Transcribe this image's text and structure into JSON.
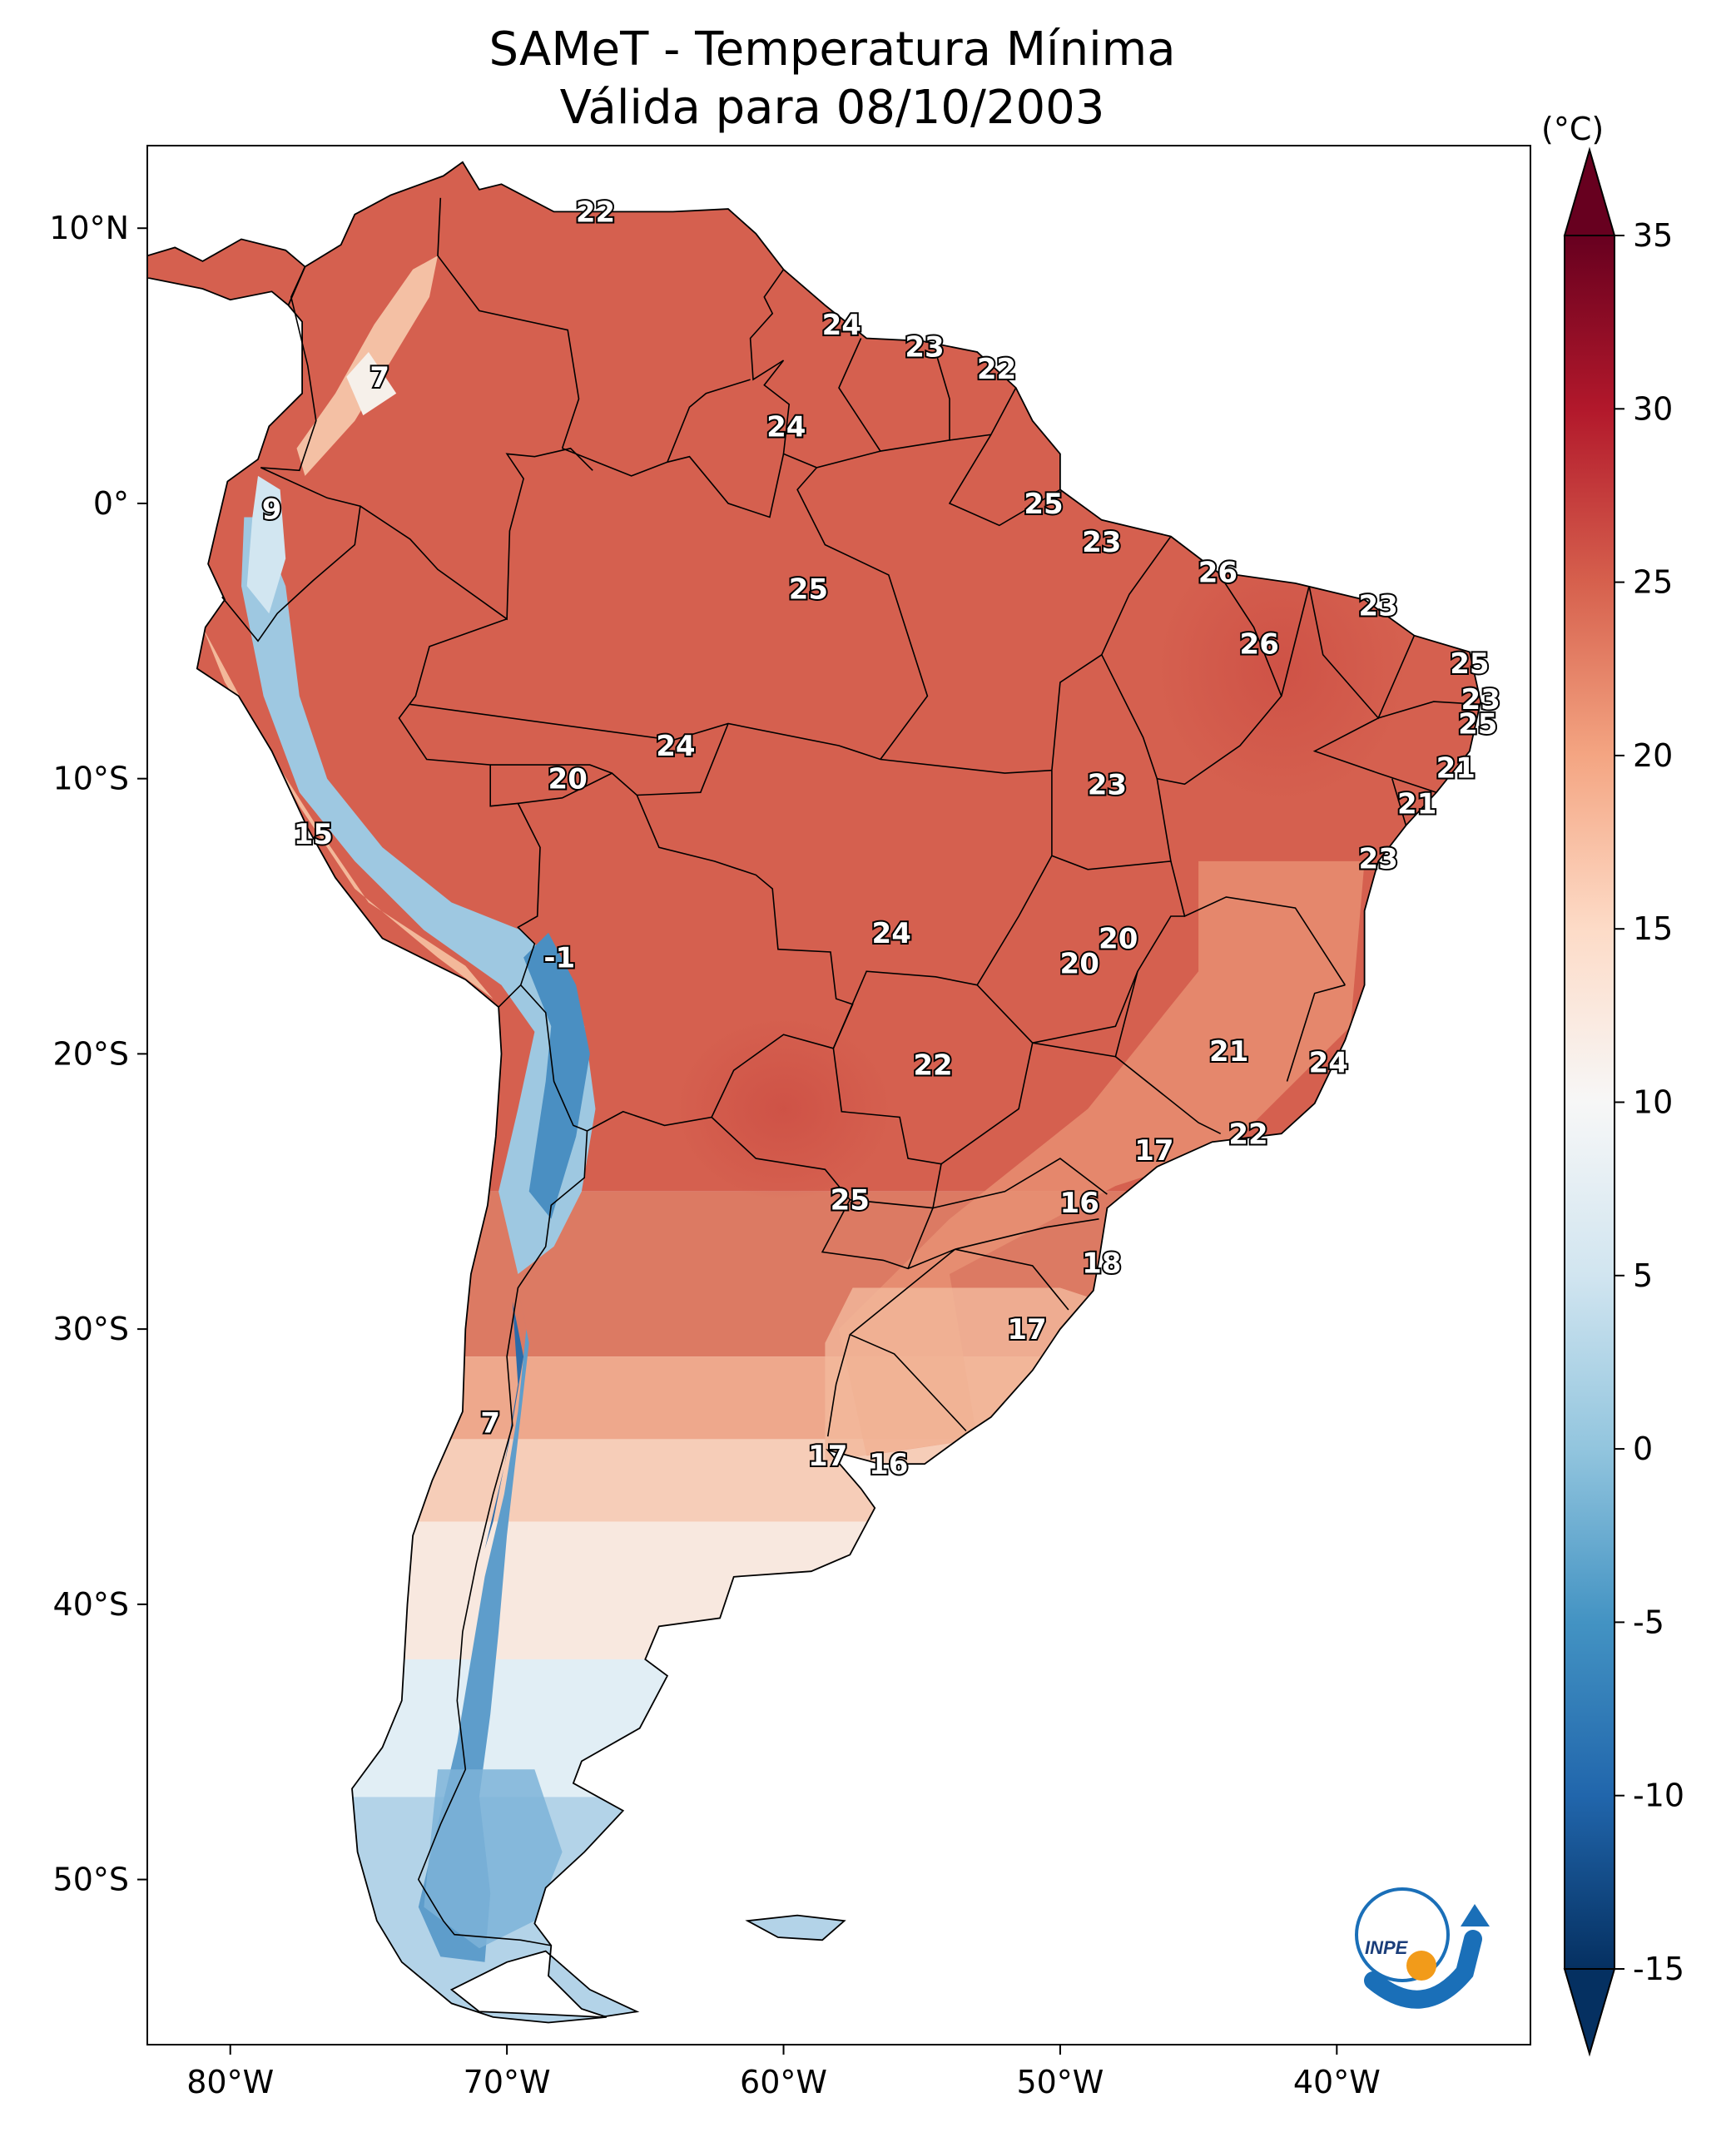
{
  "title_line1": "SAMeT - Temperatura Mínima",
  "title_line2": "Válida para 08/10/2003",
  "unit": "(°C)",
  "logo_text": "INPE",
  "lat_ticks": [
    {
      "lat": 10,
      "label": "10°N"
    },
    {
      "lat": 0,
      "label": "0°"
    },
    {
      "lat": -10,
      "label": "10°S"
    },
    {
      "lat": -20,
      "label": "20°S"
    },
    {
      "lat": -30,
      "label": "30°S"
    },
    {
      "lat": -40,
      "label": "40°S"
    },
    {
      "lat": -50,
      "label": "50°S"
    }
  ],
  "lon_ticks": [
    {
      "lon": -80,
      "label": "80°W"
    },
    {
      "lon": -70,
      "label": "70°W"
    },
    {
      "lon": -60,
      "label": "60°W"
    },
    {
      "lon": -50,
      "label": "50°W"
    },
    {
      "lon": -40,
      "label": "40°W"
    }
  ],
  "colorbar": {
    "min": -15,
    "max": 35,
    "ticks": [
      {
        "v": 35,
        "label": "35"
      },
      {
        "v": 30,
        "label": "30"
      },
      {
        "v": 25,
        "label": "25"
      },
      {
        "v": 20,
        "label": "20"
      },
      {
        "v": 15,
        "label": "15"
      },
      {
        "v": 10,
        "label": "10"
      },
      {
        "v": 5,
        "label": "5"
      },
      {
        "v": 0,
        "label": "0"
      },
      {
        "v": -5,
        "label": "-5"
      },
      {
        "v": -10,
        "label": "-10"
      },
      {
        "v": -15,
        "label": "-15"
      }
    ],
    "colors": [
      "#053061",
      "#2166ac",
      "#4393c3",
      "#92c5de",
      "#d1e5f0",
      "#f7f7f7",
      "#fddbc7",
      "#f4a582",
      "#d6604d",
      "#b2182b",
      "#67001f"
    ]
  },
  "station_labels": [
    {
      "lon": -66.8,
      "lat": 10.6,
      "text": "22"
    },
    {
      "lon": -57.9,
      "lat": 6.5,
      "text": "24"
    },
    {
      "lon": -54.9,
      "lat": 5.7,
      "text": "23"
    },
    {
      "lon": -52.3,
      "lat": 4.9,
      "text": "22"
    },
    {
      "lon": -74.6,
      "lat": 4.6,
      "text": "7"
    },
    {
      "lon": -59.9,
      "lat": 2.8,
      "text": "24"
    },
    {
      "lon": -78.5,
      "lat": -0.2,
      "text": "9"
    },
    {
      "lon": -50.6,
      "lat": 0.0,
      "text": "25"
    },
    {
      "lon": -48.5,
      "lat": -1.4,
      "text": "23"
    },
    {
      "lon": -44.3,
      "lat": -2.5,
      "text": "26"
    },
    {
      "lon": -59.1,
      "lat": -3.1,
      "text": "25"
    },
    {
      "lon": -38.5,
      "lat": -3.7,
      "text": "23"
    },
    {
      "lon": -42.8,
      "lat": -5.1,
      "text": "26"
    },
    {
      "lon": -35.2,
      "lat": -5.8,
      "text": "25"
    },
    {
      "lon": -34.8,
      "lat": -7.1,
      "text": "23"
    },
    {
      "lon": -34.9,
      "lat": -8.0,
      "text": "25"
    },
    {
      "lon": -63.9,
      "lat": -8.8,
      "text": "24"
    },
    {
      "lon": -35.7,
      "lat": -9.6,
      "text": "21"
    },
    {
      "lon": -67.8,
      "lat": -10.0,
      "text": "20"
    },
    {
      "lon": -48.3,
      "lat": -10.2,
      "text": "23"
    },
    {
      "lon": -37.1,
      "lat": -10.9,
      "text": "21"
    },
    {
      "lon": -77.0,
      "lat": -12.0,
      "text": "15"
    },
    {
      "lon": -38.5,
      "lat": -12.9,
      "text": "23"
    },
    {
      "lon": -56.1,
      "lat": -15.6,
      "text": "24"
    },
    {
      "lon": -47.9,
      "lat": -15.8,
      "text": "20"
    },
    {
      "lon": -49.3,
      "lat": -16.7,
      "text": "20"
    },
    {
      "lon": -68.1,
      "lat": -16.5,
      "text": "-1"
    },
    {
      "lon": -43.9,
      "lat": -19.9,
      "text": "21"
    },
    {
      "lon": -40.3,
      "lat": -20.3,
      "text": "24"
    },
    {
      "lon": -54.6,
      "lat": -20.4,
      "text": "22"
    },
    {
      "lon": -43.2,
      "lat": -22.9,
      "text": "22"
    },
    {
      "lon": -46.6,
      "lat": -23.5,
      "text": "17"
    },
    {
      "lon": -57.6,
      "lat": -25.3,
      "text": "25"
    },
    {
      "lon": -49.3,
      "lat": -25.4,
      "text": "16"
    },
    {
      "lon": -48.5,
      "lat": -27.6,
      "text": "18"
    },
    {
      "lon": -51.2,
      "lat": -30.0,
      "text": "17"
    },
    {
      "lon": -70.6,
      "lat": -33.4,
      "text": "7"
    },
    {
      "lon": -58.4,
      "lat": -34.6,
      "text": "17"
    },
    {
      "lon": -56.2,
      "lat": -34.9,
      "text": "16"
    }
  ]
}
